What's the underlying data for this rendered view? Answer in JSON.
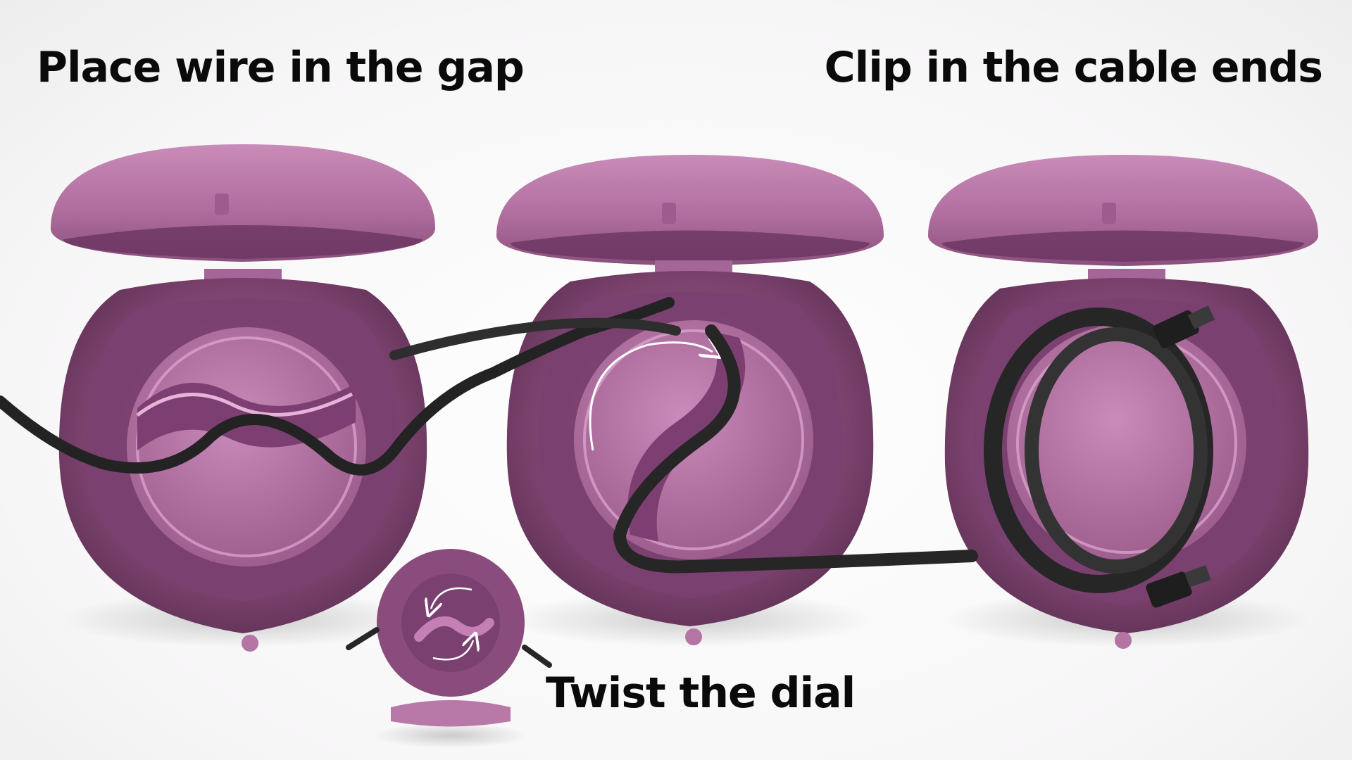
{
  "captions": {
    "step1": "Place wire in the gap",
    "step2": "Twist the dial",
    "step3": "Clip in the cable ends"
  },
  "colors": {
    "shell": "#9a5a8a",
    "shell_dark": "#6e3a63",
    "shell_light": "#c17fb0",
    "dial": "#b574a6",
    "cable": "#2a2a2a"
  }
}
